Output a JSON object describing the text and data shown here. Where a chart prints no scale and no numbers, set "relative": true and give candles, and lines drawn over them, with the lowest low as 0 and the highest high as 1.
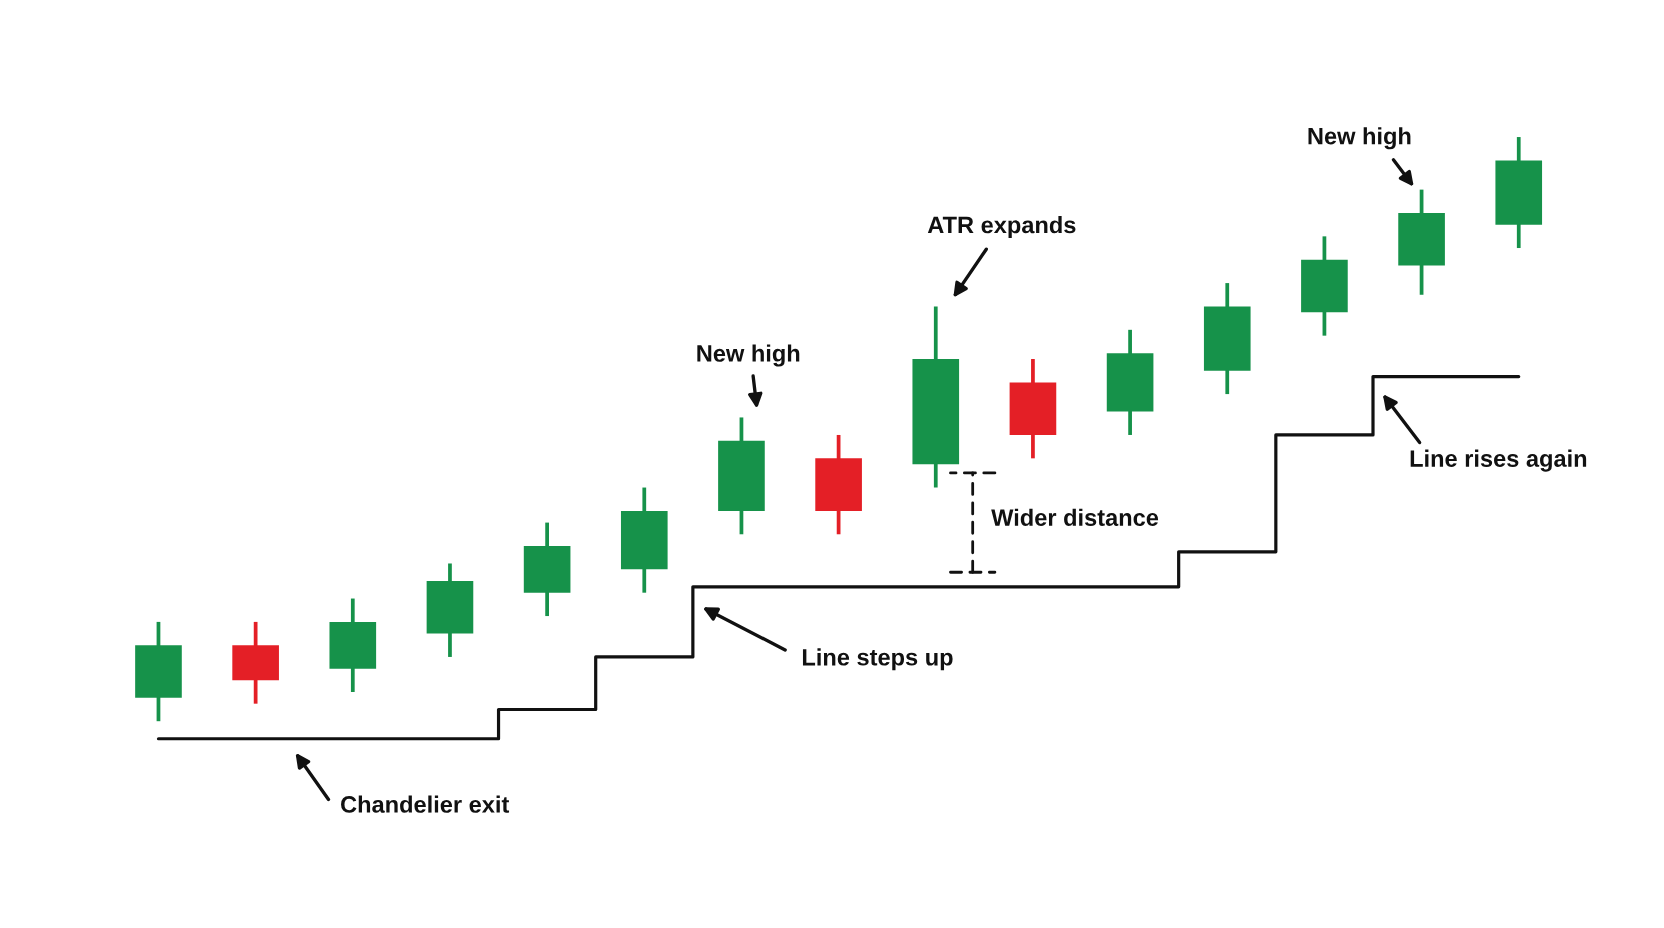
{
  "chart_data": {
    "type": "candlestick",
    "relative": true,
    "tick_labels": false,
    "categories": [
      null,
      null,
      null,
      null,
      null,
      null,
      null,
      null,
      null,
      null,
      null,
      null,
      null,
      null,
      null
    ],
    "ohlc": [
      [
        0.04,
        0.17,
        0.0,
        0.13
      ],
      [
        0.13,
        0.17,
        0.03,
        0.07
      ],
      [
        0.09,
        0.21,
        0.05,
        0.17
      ],
      [
        0.15,
        0.27,
        0.11,
        0.24
      ],
      [
        0.22,
        0.34,
        0.18,
        0.3
      ],
      [
        0.26,
        0.4,
        0.22,
        0.36
      ],
      [
        0.36,
        0.52,
        0.32,
        0.48
      ],
      [
        0.45,
        0.49,
        0.32,
        0.36
      ],
      [
        0.44,
        0.71,
        0.4,
        0.62
      ],
      [
        0.58,
        0.62,
        0.45,
        0.49
      ],
      [
        0.53,
        0.67,
        0.49,
        0.63
      ],
      [
        0.6,
        0.75,
        0.56,
        0.71
      ],
      [
        0.7,
        0.83,
        0.66,
        0.79
      ],
      [
        0.78,
        0.91,
        0.73,
        0.87
      ],
      [
        0.85,
        1.0,
        0.81,
        0.96
      ]
    ],
    "colors": [
      "#16924a",
      "#e41f26",
      "#16924a",
      "#16924a",
      "#16924a",
      "#16924a",
      "#16924a",
      "#e41f26",
      "#16924a",
      "#e41f26",
      "#16924a",
      "#16924a",
      "#16924a",
      "#16924a",
      "#16924a"
    ],
    "series": [
      {
        "type": "step",
        "name": "Chandelier exit",
        "color": "#111111",
        "values": [
          -0.03,
          -0.03,
          -0.03,
          -0.03,
          0.02,
          0.11,
          0.23,
          0.23,
          0.23,
          0.23,
          0.23,
          0.29,
          0.49,
          0.59,
          0.59
        ]
      }
    ],
    "annotations": [
      "New high",
      "ATR expands",
      "New high",
      "Wider distance",
      "Line steps up",
      "Line rises again"
    ]
  }
}
